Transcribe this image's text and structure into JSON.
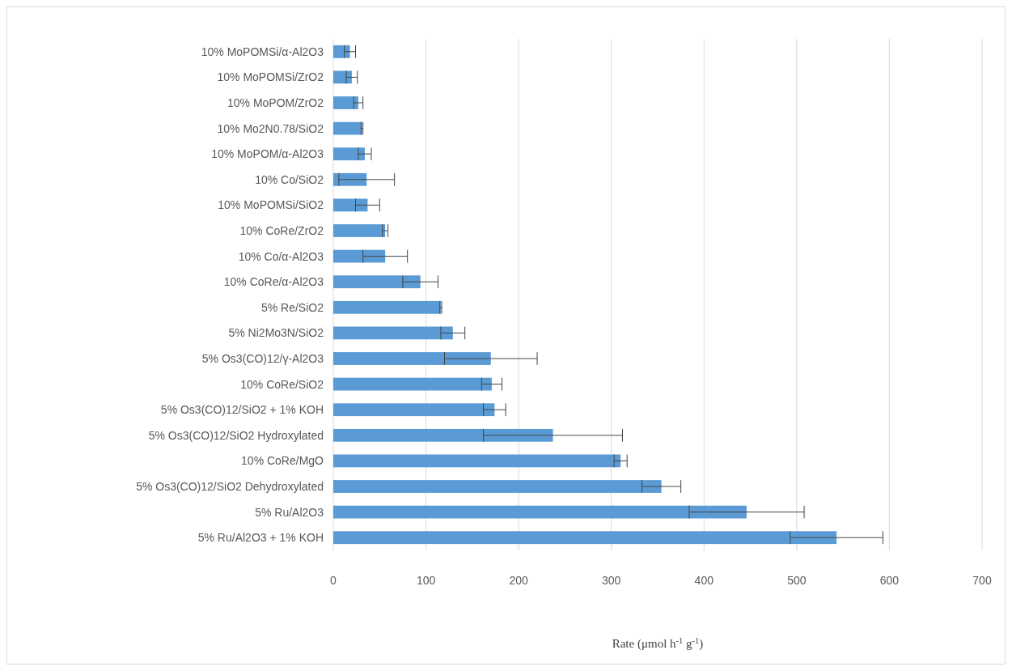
{
  "chart_data": {
    "type": "bar",
    "orientation": "horizontal",
    "xlabel": "Rate (μmol h$^{-1}$ g$^{-1}$)",
    "categories": [
      "10% MoPOMSi/α-Al2O3",
      "10% MoPOMSi/ZrO2",
      "10% MoPOM/ZrO2",
      "10% Mo2N0.78/SiO2",
      "10% MoPOM/α-Al2O3",
      "10% Co/SiO2",
      "10% MoPOMSi/SiO2",
      "10% CoRe/ZrO2",
      "10% Co/α-Al2O3",
      "10% CoRe/α-Al2O3",
      "5% Re/SiO2",
      "5% Ni2Mo3N/SiO2",
      "5% Os3(CO)12/γ-Al2O3",
      "10% CoRe/SiO2",
      "5% Os3(CO)12/SiO2 + 1% KOH",
      "5% Os3(CO)12/SiO2 Hydroxylated",
      "10% CoRe/MgO",
      "5% Os3(CO)12/SiO2  Dehydroxylated",
      "5% Ru/Al2O3",
      "5% Ru/Al2O3 + 1% KOH"
    ],
    "values": [
      18,
      20,
      27,
      31,
      34,
      36,
      37,
      56,
      56,
      94,
      116,
      129,
      170,
      171,
      174,
      237,
      310,
      354,
      446,
      543
    ],
    "errors": [
      6,
      6,
      5,
      1,
      7,
      30,
      13,
      3,
      24,
      19,
      1,
      13,
      50,
      11,
      12,
      75,
      7,
      21,
      62,
      50
    ],
    "color": "#5b9bd5",
    "xlim": [
      0,
      700
    ],
    "xticks": [
      0,
      100,
      200,
      300,
      400,
      500,
      600,
      700
    ],
    "grid": "x"
  }
}
